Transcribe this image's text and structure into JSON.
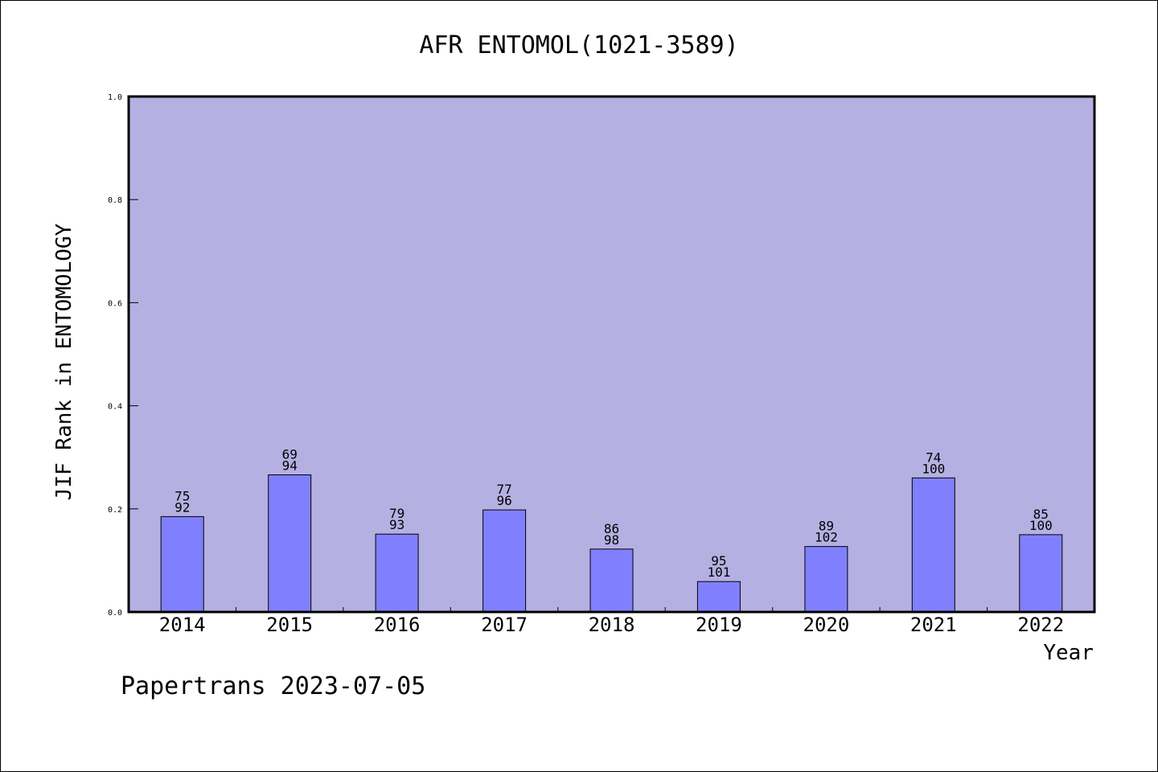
{
  "chart_data": {
    "type": "bar",
    "title": "AFR ENTOMOL(1021-3589)",
    "xlabel": "Year",
    "ylabel": "JIF Rank in ENTOMOLOGY",
    "ylim": [
      0,
      1.0
    ],
    "yticks": [
      "0.0",
      "0.2",
      "0.4",
      "0.6",
      "0.8",
      "1.0"
    ],
    "categories": [
      "2014",
      "2015",
      "2016",
      "2017",
      "2018",
      "2019",
      "2020",
      "2021",
      "2022"
    ],
    "values": [
      0.185,
      0.266,
      0.151,
      0.198,
      0.122,
      0.059,
      0.127,
      0.26,
      0.15
    ],
    "rank": [
      "75",
      "69",
      "79",
      "77",
      "86",
      "95",
      "89",
      "74",
      "85"
    ],
    "total": [
      "92",
      "94",
      "93",
      "96",
      "98",
      "101",
      "102",
      "100",
      "100"
    ],
    "grid": false,
    "legend": "none",
    "colors": {
      "plot_background": "#b5b0e2",
      "bar_fill": "#8080ff",
      "bar_stroke": "#000000"
    }
  },
  "footer": {
    "text": "Papertrans 2023-07-05"
  }
}
